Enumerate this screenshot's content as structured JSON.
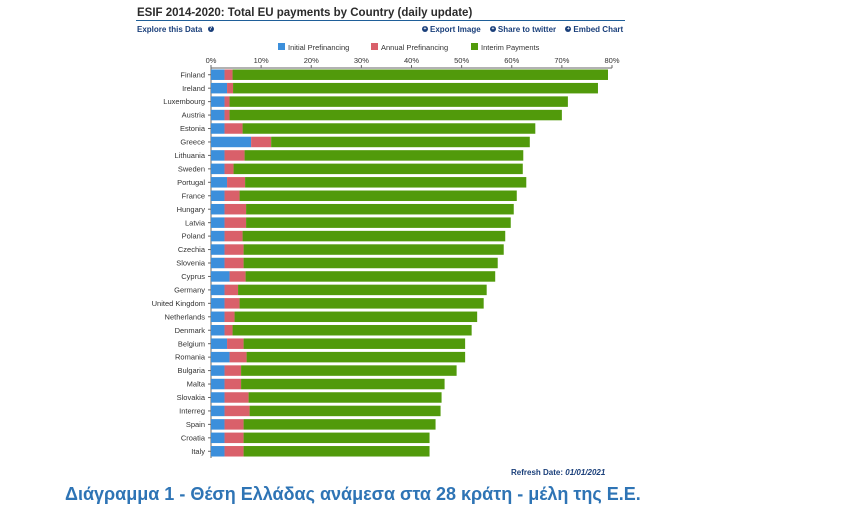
{
  "header": {
    "title": "ESIF 2014-2020: Total EU payments by Country (daily update)",
    "explore_label": "Explore this Data",
    "export_label": "Export Image",
    "share_label": "Share to twitter",
    "embed_label": "Embed Chart"
  },
  "footer": {
    "refresh_label": "Refresh Date:",
    "refresh_date": "01/01/2021"
  },
  "caption": "Διάγραμμα 1 - Θέση Ελλάδας ανάμεσα στα 28 κράτη - μέλη της Ε.Ε.",
  "colors": {
    "initial": "#3c8fdb",
    "annual": "#d9606a",
    "interim": "#519a0b"
  },
  "chart_data": {
    "type": "bar",
    "orientation": "horizontal",
    "stacked": true,
    "xlim": [
      0,
      80
    ],
    "x_ticks": [
      "0%",
      "10%",
      "20%",
      "30%",
      "40%",
      "50%",
      "60%",
      "70%",
      "80%"
    ],
    "legend_position": "top",
    "categories": [
      "Finland",
      "Ireland",
      "Luxembourg",
      "Austria",
      "Estonia",
      "Greece",
      "Lithuania",
      "Sweden",
      "Portugal",
      "France",
      "Hungary",
      "Latvia",
      "Poland",
      "Czechia",
      "Slovenia",
      "Cyprus",
      "Germany",
      "United Kingdom",
      "Netherlands",
      "Denmark",
      "Belgium",
      "Romania",
      "Bulgaria",
      "Malta",
      "Slovakia",
      "Interreg",
      "Spain",
      "Croatia",
      "Italy"
    ],
    "series": [
      {
        "name": "Initial Prefinancing",
        "values": [
          2.7,
          3.2,
          2.7,
          2.7,
          2.7,
          8.0,
          2.7,
          2.7,
          3.2,
          2.7,
          2.7,
          2.7,
          2.7,
          2.7,
          2.7,
          3.7,
          2.7,
          2.7,
          2.7,
          2.7,
          3.2,
          3.7,
          2.7,
          2.7,
          2.7,
          2.7,
          2.7,
          2.7,
          2.7
        ]
      },
      {
        "name": "Annual Prefinancing",
        "values": [
          1.6,
          1.2,
          1.0,
          1.0,
          3.6,
          4.0,
          4.0,
          1.8,
          3.6,
          3.0,
          4.3,
          4.3,
          3.6,
          3.8,
          3.8,
          3.2,
          2.7,
          3.0,
          2.0,
          1.6,
          3.3,
          3.4,
          3.3,
          3.3,
          4.8,
          5.0,
          3.8,
          3.8,
          3.8
        ]
      },
      {
        "name": "Interim Payments",
        "values": [
          74.9,
          72.8,
          67.5,
          66.3,
          58.4,
          51.6,
          55.6,
          57.7,
          56.1,
          55.3,
          53.4,
          52.8,
          52.4,
          51.9,
          50.7,
          49.8,
          49.6,
          48.7,
          48.4,
          47.7,
          44.2,
          43.6,
          43.0,
          40.6,
          38.5,
          38.1,
          38.3,
          37.1,
          37.1
        ]
      }
    ]
  }
}
